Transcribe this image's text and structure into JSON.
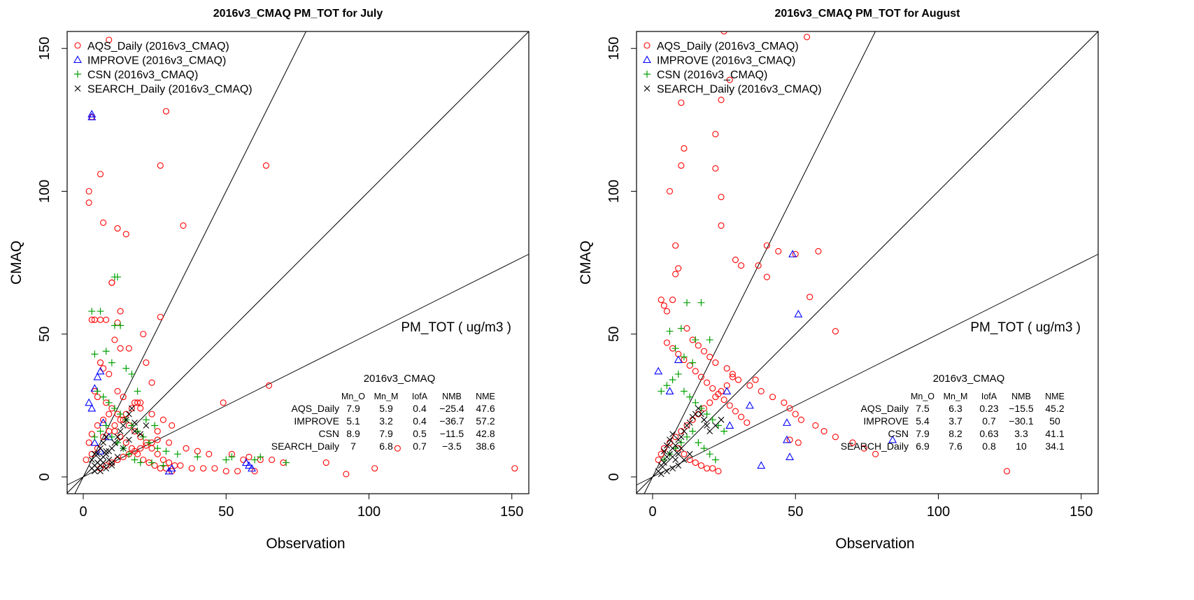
{
  "chart_data": [
    {
      "type": "scatter",
      "title": "2016v3_CMAQ PM_TOT for July",
      "xlabel": "Observation",
      "ylabel": "CMAQ",
      "xlim": [
        0,
        150
      ],
      "ylim": [
        0,
        150
      ],
      "xticks": [
        "0",
        "50",
        "100",
        "150"
      ],
      "yticks": [
        "0",
        "50",
        "100",
        "150"
      ],
      "reference_lines": [
        {
          "slope": 2
        },
        {
          "slope": 1
        },
        {
          "slope": 0.5
        }
      ],
      "species_label": "PM_TOT  ( ug/m3 )",
      "legend_position": "top-left",
      "legend": [
        {
          "label": "AQS_Daily (2016v3_CMAQ)",
          "symbol": "circle",
          "color": "#ff0000"
        },
        {
          "label": "IMPROVE (2016v3_CMAQ)",
          "symbol": "triangle",
          "color": "#0000ff"
        },
        {
          "label": "CSN (2016v3_CMAQ)",
          "symbol": "plus",
          "color": "#00a000"
        },
        {
          "label": "SEARCH_Daily (2016v3_CMAQ)",
          "symbol": "cross",
          "color": "#000000"
        }
      ],
      "stats": {
        "title": "2016v3_CMAQ",
        "headers": [
          "Mn_O",
          "Mn_M",
          "IofA",
          "NMB",
          "NME"
        ],
        "rows": [
          {
            "network": "AQS_Daily",
            "values": [
              "7.9",
              "5.9",
              "0.4",
              "−25.4",
              "47.6"
            ]
          },
          {
            "network": "IMPROVE",
            "values": [
              "5.1",
              "3.2",
              "0.4",
              "−36.7",
              "57.2"
            ]
          },
          {
            "network": "CSN",
            "values": [
              "8.9",
              "7.9",
              "0.5",
              "−11.5",
              "42.8"
            ]
          },
          {
            "network": "SEARCH_Daily",
            "values": [
              "7",
              "6.8",
              "0.7",
              "−3.5",
              "38.6"
            ]
          }
        ]
      },
      "series": [
        {
          "name": "AQS_Daily (2016v3_CMAQ)",
          "symbol": "circle",
          "color": "#ff0000",
          "x": [
            9,
            3,
            6,
            2,
            2,
            7,
            12,
            15,
            29,
            27,
            64,
            35,
            10,
            10,
            13,
            3,
            4,
            6,
            8,
            12,
            11,
            13,
            27,
            21,
            16,
            22,
            24,
            20,
            6,
            7,
            9,
            12,
            14,
            18,
            20,
            24,
            28,
            31,
            26,
            30,
            36,
            40,
            44,
            49,
            52,
            58,
            62,
            66,
            70,
            85,
            92,
            102,
            110,
            151,
            65,
            56,
            4,
            5,
            8,
            10,
            12,
            14,
            16,
            18,
            20,
            22,
            24,
            26,
            28,
            30,
            32,
            34,
            38,
            42,
            46,
            50,
            54,
            60,
            2,
            3,
            5,
            7,
            9,
            11,
            13,
            15,
            17,
            19,
            21,
            23,
            25,
            27,
            29,
            31,
            1,
            3,
            5,
            7,
            9,
            11,
            13,
            15,
            17,
            19,
            6,
            8,
            10,
            12,
            14,
            16,
            18,
            20,
            22,
            24,
            26
          ],
          "y": [
            153,
            126,
            106,
            100,
            96,
            89,
            87,
            85,
            128,
            109,
            109,
            88,
            68,
            68,
            58,
            55,
            55,
            55,
            55,
            54,
            48,
            45,
            56,
            50,
            45,
            40,
            33,
            26,
            40,
            38,
            36,
            30,
            28,
            26,
            24,
            22,
            20,
            18,
            16,
            12,
            10,
            9,
            8,
            26,
            8,
            7,
            6,
            6,
            5,
            5,
            1,
            3,
            10,
            3,
            32,
            6,
            30,
            28,
            26,
            24,
            22,
            20,
            18,
            16,
            14,
            12,
            10,
            8,
            6,
            5,
            4,
            4,
            3,
            3,
            3,
            2,
            2,
            2,
            12,
            15,
            18,
            20,
            22,
            16,
            14,
            12,
            10,
            8,
            6,
            5,
            4,
            3,
            3,
            2,
            6,
            8,
            10,
            14,
            16,
            18,
            20,
            22,
            24,
            26,
            3,
            4,
            5,
            6,
            7,
            8,
            9,
            10,
            11,
            12,
            13
          ]
        },
        {
          "name": "IMPROVE (2016v3_CMAQ)",
          "symbol": "triangle",
          "color": "#0000ff",
          "x": [
            3,
            3,
            5,
            4,
            6,
            2,
            3,
            7,
            9,
            30,
            31,
            58,
            59,
            57,
            4,
            6
          ],
          "y": [
            126,
            127,
            35,
            31,
            37,
            26,
            24,
            19,
            14,
            2,
            3,
            4,
            3,
            5,
            12,
            9
          ]
        },
        {
          "name": "CSN (2016v3_CMAQ)",
          "symbol": "plus",
          "color": "#00a000",
          "x": [
            11,
            12,
            3,
            6,
            13,
            11,
            4,
            8,
            10,
            15,
            17,
            19,
            22,
            25,
            5,
            7,
            9,
            11,
            13,
            15,
            17,
            19,
            21,
            23,
            26,
            29,
            33,
            40,
            50,
            52,
            60,
            62,
            71,
            4,
            6,
            8,
            10,
            12,
            14,
            16,
            18,
            20,
            24,
            28
          ],
          "y": [
            70,
            70,
            58,
            58,
            53,
            53,
            43,
            44,
            40,
            38,
            36,
            30,
            20,
            18,
            30,
            28,
            26,
            24,
            22,
            20,
            18,
            16,
            14,
            12,
            10,
            9,
            8,
            7,
            6,
            7,
            6,
            7,
            5,
            14,
            16,
            18,
            14,
            12,
            10,
            8,
            6,
            5,
            5,
            4
          ]
        },
        {
          "name": "SEARCH_Daily (2016v3_CMAQ)",
          "symbol": "cross",
          "color": "#000000",
          "x": [
            3,
            4,
            5,
            6,
            7,
            8,
            9,
            10,
            11,
            12,
            13,
            14,
            15,
            16,
            17,
            18,
            20,
            22,
            5,
            6,
            7,
            8,
            9,
            10,
            4,
            5,
            6,
            7,
            8,
            3,
            4,
            6,
            8,
            10,
            12,
            14,
            16,
            18
          ],
          "y": [
            3,
            4,
            5,
            6,
            7,
            8,
            9,
            10,
            12,
            14,
            16,
            18,
            20,
            22,
            24,
            19,
            15,
            18,
            8,
            10,
            12,
            14,
            6,
            4,
            2,
            3,
            4,
            5,
            9,
            6,
            8,
            2,
            3,
            5,
            7,
            10,
            13,
            16
          ]
        }
      ]
    },
    {
      "type": "scatter",
      "title": "2016v3_CMAQ PM_TOT for August",
      "xlabel": "Observation",
      "ylabel": "CMAQ",
      "xlim": [
        0,
        150
      ],
      "ylim": [
        0,
        150
      ],
      "xticks": [
        "0",
        "50",
        "100",
        "150"
      ],
      "yticks": [
        "0",
        "50",
        "100",
        "150"
      ],
      "reference_lines": [
        {
          "slope": 2
        },
        {
          "slope": 1
        },
        {
          "slope": 0.5
        }
      ],
      "species_label": "PM_TOT  ( ug/m3 )",
      "legend_position": "top-left",
      "legend": [
        {
          "label": "AQS_Daily (2016v3_CMAQ)",
          "symbol": "circle",
          "color": "#ff0000"
        },
        {
          "label": "IMPROVE (2016v3_CMAQ)",
          "symbol": "triangle",
          "color": "#0000ff"
        },
        {
          "label": "CSN (2016v3_CMAQ)",
          "symbol": "plus",
          "color": "#00a000"
        },
        {
          "label": "SEARCH_Daily (2016v3_CMAQ)",
          "symbol": "cross",
          "color": "#000000"
        }
      ],
      "stats": {
        "title": "2016v3_CMAQ",
        "headers": [
          "Mn_O",
          "Mn_M",
          "IofA",
          "NMB",
          "NME"
        ],
        "rows": [
          {
            "network": "AQS_Daily",
            "values": [
              "7.5",
              "6.3",
              "0.23",
              "−15.5",
              "45.2"
            ]
          },
          {
            "network": "IMPROVE",
            "values": [
              "5.4",
              "3.7",
              "0.7",
              "−30.1",
              "50"
            ]
          },
          {
            "network": "CSN",
            "values": [
              "7.9",
              "8.2",
              "0.63",
              "3.3",
              "41.1"
            ]
          },
          {
            "network": "SEARCH_Daily",
            "values": [
              "6.9",
              "7.6",
              "0.8",
              "10",
              "34.1"
            ]
          }
        ]
      },
      "series": [
        {
          "name": "AQS_Daily (2016v3_CMAQ)",
          "symbol": "circle",
          "color": "#ff0000",
          "x": [
            25,
            54,
            27,
            24,
            10,
            22,
            11,
            10,
            22,
            6,
            24,
            24,
            8,
            40,
            44,
            29,
            31,
            37,
            40,
            50,
            55,
            58,
            64,
            9,
            8,
            7,
            3,
            4,
            5,
            12,
            14,
            16,
            18,
            20,
            22,
            26,
            28,
            30,
            34,
            38,
            42,
            46,
            48,
            50,
            52,
            57,
            60,
            64,
            70,
            74,
            78,
            124,
            36,
            48,
            51,
            28,
            5,
            7,
            9,
            11,
            13,
            15,
            17,
            19,
            21,
            23,
            25,
            27,
            29,
            31,
            33,
            2,
            3,
            4,
            6,
            8,
            10,
            12,
            14,
            16,
            18,
            20,
            22,
            24,
            26,
            9,
            11,
            13,
            15,
            17,
            19,
            21,
            23
          ],
          "y": [
            156,
            154,
            139,
            132,
            131,
            120,
            115,
            109,
            108,
            100,
            98,
            88,
            81,
            81,
            79,
            76,
            74,
            74,
            70,
            78,
            63,
            79,
            51,
            73,
            71,
            62,
            62,
            60,
            58,
            52,
            48,
            46,
            44,
            42,
            40,
            38,
            36,
            34,
            32,
            30,
            28,
            26,
            24,
            22,
            20,
            18,
            16,
            14,
            12,
            10,
            8,
            2,
            34,
            13,
            12,
            35,
            47,
            45,
            43,
            41,
            39,
            37,
            35,
            33,
            31,
            29,
            27,
            25,
            23,
            21,
            19,
            6,
            8,
            10,
            12,
            14,
            16,
            18,
            20,
            22,
            24,
            26,
            28,
            30,
            32,
            10,
            8,
            6,
            5,
            4,
            3,
            3,
            2
          ]
        },
        {
          "name": "IMPROVE (2016v3_CMAQ)",
          "symbol": "triangle",
          "color": "#0000ff",
          "x": [
            49,
            51,
            34,
            47,
            47,
            48,
            84,
            38,
            27,
            2,
            9,
            6,
            26
          ],
          "y": [
            78,
            57,
            25,
            19,
            13,
            7,
            13,
            4,
            18,
            37,
            41,
            30,
            30
          ]
        },
        {
          "name": "CSN (2016v3_CMAQ)",
          "symbol": "plus",
          "color": "#00a000",
          "x": [
            12,
            17,
            10,
            6,
            15,
            20,
            8,
            11,
            14,
            3,
            5,
            7,
            9,
            11,
            13,
            15,
            17,
            19,
            21,
            23,
            25,
            4,
            6,
            8,
            10,
            12,
            14,
            16,
            18,
            20,
            22
          ],
          "y": [
            61,
            61,
            52,
            51,
            48,
            48,
            45,
            42,
            40,
            30,
            32,
            34,
            36,
            30,
            28,
            26,
            24,
            22,
            20,
            18,
            16,
            6,
            8,
            10,
            12,
            14,
            16,
            12,
            10,
            8,
            6
          ]
        },
        {
          "name": "SEARCH_Daily (2016v3_CMAQ)",
          "symbol": "cross",
          "color": "#000000",
          "x": [
            2,
            3,
            4,
            5,
            6,
            7,
            8,
            9,
            10,
            11,
            12,
            13,
            14,
            15,
            16,
            17,
            18,
            19,
            20,
            22,
            24,
            4,
            5,
            6,
            7,
            8,
            9,
            10,
            3,
            5,
            7,
            9,
            11,
            13
          ],
          "y": [
            2,
            4,
            5,
            7,
            8,
            10,
            11,
            13,
            14,
            16,
            18,
            19,
            21,
            22,
            24,
            22,
            20,
            18,
            16,
            18,
            20,
            9,
            11,
            13,
            15,
            6,
            8,
            10,
            1,
            2,
            3,
            4,
            6,
            8
          ]
        }
      ]
    }
  ]
}
